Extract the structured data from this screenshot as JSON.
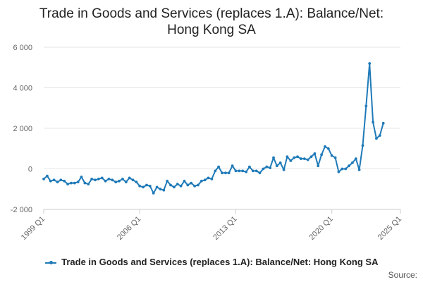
{
  "title_line1": "Trade in Goods and Services (replaces 1.A): Balance/Net:",
  "title_line2": "Hong Kong SA",
  "legend_label": "Trade in Goods and Services (replaces 1.A): Balance/Net: Hong Kong SA",
  "source_label": "Source:",
  "colors": {
    "series": "#1f7ab8",
    "grid": "#e6e6e6",
    "axis": "#cccccc",
    "text": "#666666"
  },
  "chart_data": {
    "type": "line",
    "title": "Trade in Goods and Services (replaces 1.A): Balance/Net: Hong Kong SA",
    "xlabel": "",
    "ylabel": "",
    "ylim": [
      -2000,
      6000
    ],
    "yticks": [
      -2000,
      0,
      2000,
      4000,
      6000
    ],
    "ytick_labels": [
      "-2 000",
      "0",
      "2 000",
      "4 000",
      "6 000"
    ],
    "xticks": [
      0,
      28,
      56,
      84,
      104
    ],
    "xtick_labels": [
      "1999 Q1",
      "2006 Q1",
      "2013 Q1",
      "2020 Q1",
      "2025 Q1"
    ],
    "x_start": "1999 Q1",
    "frequency": "quarterly",
    "series": [
      {
        "name": "Trade in Goods and Services (replaces 1.A): Balance/Net: Hong Kong SA",
        "values": [
          -500,
          -350,
          -600,
          -550,
          -650,
          -550,
          -600,
          -750,
          -700,
          -700,
          -650,
          -400,
          -700,
          -750,
          -500,
          -550,
          -500,
          -450,
          -600,
          -500,
          -550,
          -650,
          -600,
          -500,
          -650,
          -450,
          -550,
          -650,
          -850,
          -900,
          -800,
          -850,
          -1200,
          -900,
          -1000,
          -1050,
          -600,
          -800,
          -900,
          -750,
          -850,
          -600,
          -800,
          -700,
          -850,
          -800,
          -600,
          -550,
          -450,
          -500,
          -100,
          100,
          -200,
          -200,
          -200,
          150,
          -100,
          -100,
          -100,
          -150,
          100,
          -100,
          -100,
          -200,
          0,
          100,
          50,
          550,
          150,
          300,
          -50,
          600,
          400,
          550,
          600,
          500,
          500,
          450,
          600,
          750,
          150,
          700,
          1100,
          1000,
          650,
          550,
          -150,
          0,
          0,
          150,
          300,
          500,
          -50,
          1150,
          3100,
          5200,
          2300,
          1500,
          1650,
          2250
        ]
      }
    ]
  }
}
